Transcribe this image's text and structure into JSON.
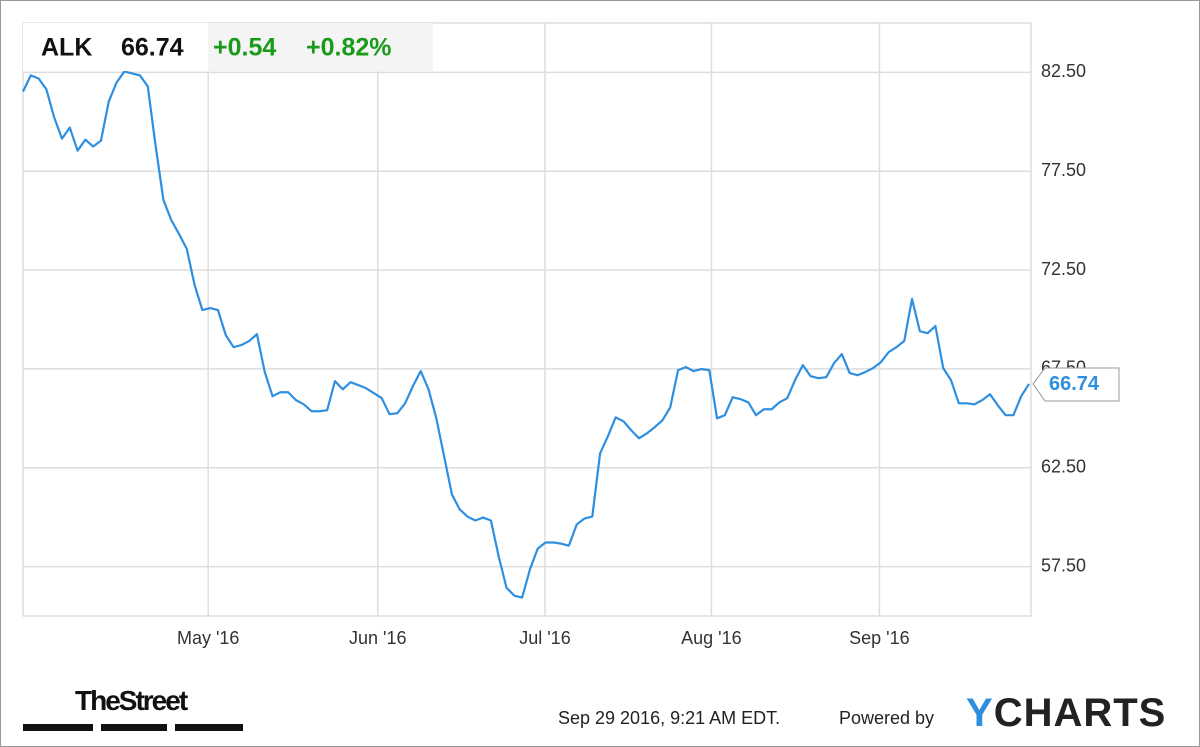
{
  "chart_data": {
    "type": "line",
    "symbol": "ALK",
    "price": 66.74,
    "change": "+0.54",
    "change_percent": "+0.82%",
    "color": "#2e8fe0",
    "grid": true,
    "values": [
      81.53,
      82.35,
      82.19,
      81.64,
      80.22,
      79.15,
      79.71,
      78.54,
      79.1,
      78.75,
      79.05,
      81.03,
      81.99,
      82.55,
      82.45,
      82.35,
      81.79,
      78.8,
      76.06,
      75.04,
      74.33,
      73.57,
      71.75,
      70.48,
      70.58,
      70.48,
      69.21,
      68.6,
      68.71,
      68.91,
      69.26,
      67.34,
      66.12,
      66.32,
      66.32,
      65.92,
      65.71,
      65.36,
      65.36,
      65.41,
      66.88,
      66.47,
      66.83,
      66.68,
      66.52,
      66.27,
      66.02,
      65.21,
      65.26,
      65.76,
      66.63,
      67.39,
      66.47,
      65.0,
      63.08,
      61.15,
      60.39,
      60.03,
      59.83,
      59.98,
      59.83,
      58.01,
      56.43,
      56.03,
      55.93,
      57.35,
      58.41,
      58.72,
      58.72,
      58.66,
      58.56,
      59.63,
      59.93,
      60.03,
      63.23,
      64.09,
      65.05,
      64.85,
      64.39,
      63.99,
      64.24,
      64.55,
      64.9,
      65.56,
      67.44,
      67.59,
      67.39,
      67.49,
      67.44,
      65.0,
      65.16,
      66.07,
      65.97,
      65.81,
      65.16,
      65.46,
      65.46,
      65.81,
      66.02,
      66.93,
      67.69,
      67.13,
      67.03,
      67.08,
      67.79,
      68.25,
      67.29,
      67.18,
      67.34,
      67.54,
      67.84,
      68.35,
      68.6,
      68.91,
      71.04,
      69.41,
      69.31,
      69.67,
      67.54,
      66.93,
      65.76,
      65.76,
      65.71,
      65.92,
      66.22,
      65.66,
      65.16,
      65.16,
      66.12,
      66.74
    ],
    "xlim": [
      0,
      129
    ],
    "xticks": [
      {
        "value": 23.7,
        "label": "May '16"
      },
      {
        "value": 45.4,
        "label": "Jun '16"
      },
      {
        "value": 66.8,
        "label": "Jul '16"
      },
      {
        "value": 88.1,
        "label": "Aug '16"
      },
      {
        "value": 109.6,
        "label": "Sep '16"
      }
    ],
    "ylim": [
      55,
      85
    ],
    "yticks": [
      {
        "value": 57.5,
        "label": "57.50"
      },
      {
        "value": 62.5,
        "label": "62.50"
      },
      {
        "value": 67.5,
        "label": "67.50"
      },
      {
        "value": 72.5,
        "label": "72.50"
      },
      {
        "value": 77.5,
        "label": "77.50"
      },
      {
        "value": 82.5,
        "label": "82.50"
      }
    ],
    "source": "TheStreet",
    "timestamp": "Sep 29 2016, 9:21 AM EDT.",
    "powered_by": "Powered by",
    "brand": "YCHARTS"
  }
}
